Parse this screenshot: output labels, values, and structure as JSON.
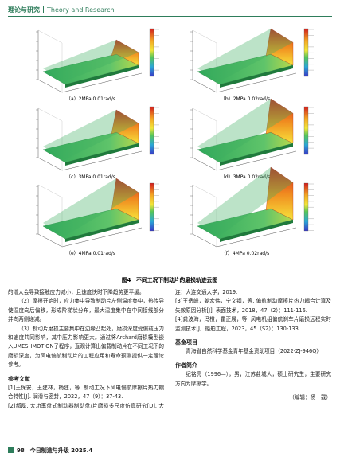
{
  "header": {
    "section": "理论与研究",
    "section_en": "Theory and Research"
  },
  "figure": {
    "panels": [
      {
        "caption": "（a）2MPa 0.01rad/s"
      },
      {
        "caption": "（b）2MPa 0.02rad/s"
      },
      {
        "caption": "（c）3MPa 0.01rad/s"
      },
      {
        "caption": "（d）3MPa 0.02rad/s"
      },
      {
        "caption": "（e）4MPa 0.01rad/s"
      },
      {
        "caption": "（f）4MPa 0.02rad/s"
      }
    ],
    "caption": "图4　不同工况下制动片的磨损轨迹云图"
  },
  "body": {
    "paragraphs": [
      "的增大会导致接触应力减小，且速度快时下降趋势更平缓。",
      "（2）摩擦开始时，应力集中导致制动片左侧温度集中，热传导使温度向后偏移，形成阶梯状分布，最大温度集中在中间接线部分并向两侧递减。",
      "（3）制动片磨损主要集中在边缘凸起处，磨损深度受偏载压力和速度共同影响，其中压力影响更大。通过将Archard磨损模型嵌入UMESHMOTION子程序，直观计算出偏载制动片在不同工况下的磨损深度，为风电偏航制动片的工程应用和寿命预测提供一定理论参考。"
    ]
  },
  "references": {
    "title": "参考文献",
    "items": [
      "[1]王保安，王建林，杨建，等. 制动工况下风电偏航摩擦片热力耦合特性[J]. 润滑与密封，2022，47（9）：37-43.",
      "[2]郝磊. 大功率盘式制动器制动盘/片磨损多尺度仿真研究[D]. 大连：大连交通大学，2019.",
      "[3]王岳峰，姜宏伟，宁文钢，等. 偏航制动摩擦片热力耦合计算及失效原因分析[J]. 表面技术，2018，47（2）：111-116.",
      "[4]龚波海，冯橙，霍正展，等. 风电机组偏航刹车片磨损远程实时监测技术[J]. 船舶工程，2023，45（S2）：130-133."
    ]
  },
  "fund": {
    "title": "基金项目",
    "text": "青海省自然科学基金青年基金资助项目（2022-ZJ-946Q）"
  },
  "author": {
    "title": "作者简介",
    "text": "纪铭亮（1996—），男，江苏盐城人，硕士研究生，主要研究方向为摩擦学。"
  },
  "editor": "（编辑：杨　载）",
  "footer": {
    "page": "98",
    "journal": "今日制造与升级 2025.4"
  }
}
